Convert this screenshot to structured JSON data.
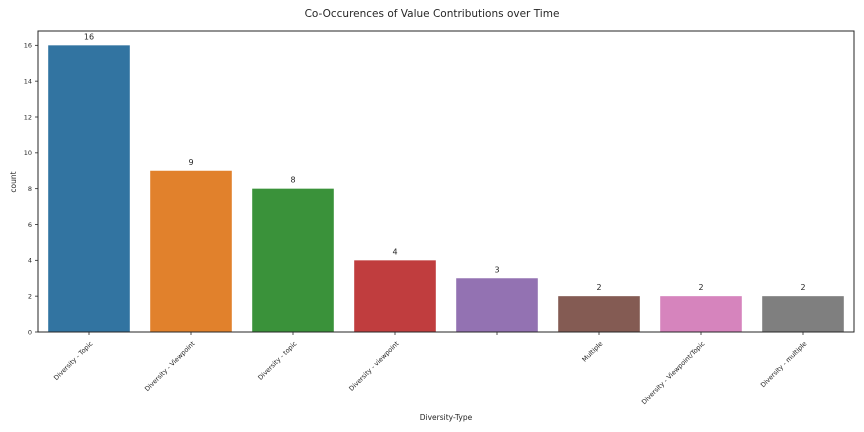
{
  "chart_data": {
    "type": "bar",
    "title": "Co-Occurences of Value Contributions over Time",
    "xlabel": "Diversity-Type",
    "ylabel": "count",
    "categories": [
      "Diversity - Topic",
      "Diversity - Viewpoint",
      "Diversity - topic",
      "Diversity - viewpoint",
      "",
      "Multiple",
      "Diversity - Viewpoint/Topic",
      "Diversity - multiple"
    ],
    "values": [
      16,
      9,
      8,
      4,
      3,
      2,
      2,
      2
    ],
    "colors": [
      "#3274a1",
      "#e1812c",
      "#3a923a",
      "#c03d3e",
      "#9372b2",
      "#845b53",
      "#d684bd",
      "#7f7f7f"
    ],
    "ylim": [
      0,
      16.8
    ],
    "yticks": [
      0,
      2,
      4,
      6,
      8,
      10,
      12,
      14,
      16
    ],
    "grid": false,
    "legend": "none"
  }
}
